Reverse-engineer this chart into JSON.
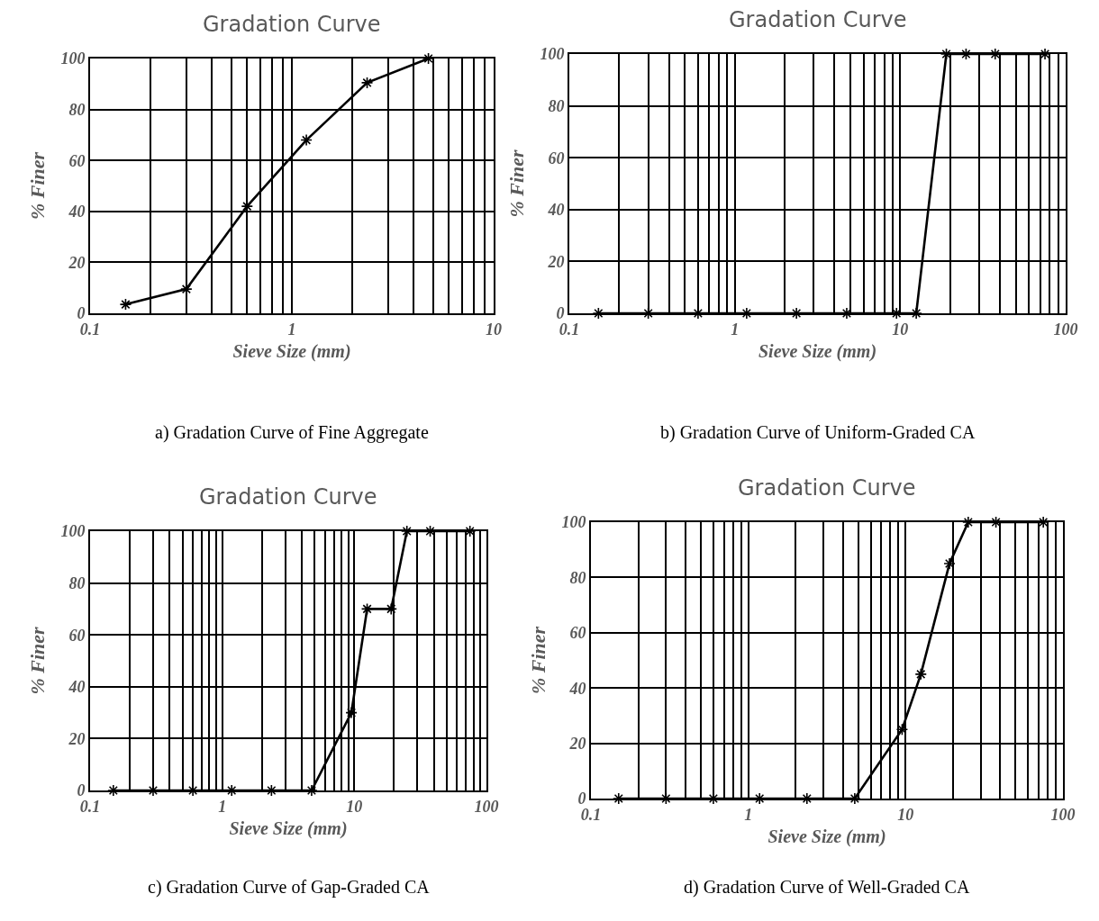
{
  "chart_data": [
    {
      "type": "line",
      "title": "Gradation Curve",
      "xlabel": "Sieve Size (mm)",
      "ylabel": "% Finer",
      "log": "x",
      "grid": true,
      "marker": "cross",
      "line_style": "solid",
      "x": [
        0.15,
        0.3,
        0.6,
        1.18,
        2.36,
        4.75
      ],
      "series": [
        {
          "color": "#000000",
          "values": [
            3.5,
            9.5,
            42,
            68,
            90.5,
            100
          ]
        }
      ],
      "xlim": [
        0.1,
        10
      ],
      "xticks": [
        0.1,
        {
          "value": 0.2,
          "label": null
        },
        {
          "value": 0.3,
          "label": null
        },
        {
          "value": 0.4,
          "label": null
        },
        {
          "value": 0.5,
          "label": null
        },
        {
          "value": 0.6,
          "label": null
        },
        {
          "value": 0.7,
          "label": null
        },
        {
          "value": 0.8,
          "label": null
        },
        {
          "value": 0.9,
          "label": null
        },
        1,
        {
          "value": 2,
          "label": null
        },
        {
          "value": 3,
          "label": null
        },
        {
          "value": 4,
          "label": null
        },
        {
          "value": 5,
          "label": null
        },
        {
          "value": 6,
          "label": null
        },
        {
          "value": 7,
          "label": null
        },
        {
          "value": 8,
          "label": null
        },
        {
          "value": 9,
          "label": null
        },
        10
      ],
      "ylim": [
        0,
        100
      ],
      "yticks": [
        0,
        20,
        40,
        60,
        80,
        100
      ],
      "annotations": [
        "a) Gradation Curve of Fine Aggregate"
      ]
    },
    {
      "type": "line",
      "title": "Gradation Curve",
      "xlabel": "Sieve Size (mm)",
      "ylabel": "% Finer",
      "log": "x",
      "grid": true,
      "marker": "cross",
      "line_style": "solid",
      "x": [
        0.15,
        0.3,
        0.6,
        1.18,
        2.36,
        4.75,
        9.5,
        12.5,
        19,
        25,
        37.5,
        75
      ],
      "series": [
        {
          "color": "#000000",
          "values": [
            0,
            0,
            0,
            0,
            0,
            0,
            0,
            0,
            100,
            100,
            100,
            100
          ]
        }
      ],
      "xlim": [
        0.1,
        100
      ],
      "xticks": [
        0.1,
        {
          "value": 0.2,
          "label": null
        },
        {
          "value": 0.3,
          "label": null
        },
        {
          "value": 0.4,
          "label": null
        },
        {
          "value": 0.5,
          "label": null
        },
        {
          "value": 0.6,
          "label": null
        },
        {
          "value": 0.7,
          "label": null
        },
        {
          "value": 0.8,
          "label": null
        },
        {
          "value": 0.9,
          "label": null
        },
        1,
        {
          "value": 2,
          "label": null
        },
        {
          "value": 3,
          "label": null
        },
        {
          "value": 4,
          "label": null
        },
        {
          "value": 5,
          "label": null
        },
        {
          "value": 6,
          "label": null
        },
        {
          "value": 7,
          "label": null
        },
        {
          "value": 8,
          "label": null
        },
        {
          "value": 9,
          "label": null
        },
        10,
        {
          "value": 20,
          "label": null
        },
        {
          "value": 30,
          "label": null
        },
        {
          "value": 40,
          "label": null
        },
        {
          "value": 50,
          "label": null
        },
        {
          "value": 60,
          "label": null
        },
        {
          "value": 70,
          "label": null
        },
        {
          "value": 80,
          "label": null
        },
        {
          "value": 90,
          "label": null
        },
        100
      ],
      "ylim": [
        0,
        100
      ],
      "yticks": [
        0,
        20,
        40,
        60,
        80,
        100
      ],
      "annotations": [
        "b) Gradation Curve of Uniform-Graded CA"
      ]
    },
    {
      "type": "line",
      "title": "Gradation Curve",
      "xlabel": "Sieve Size (mm)",
      "ylabel": "% Finer",
      "log": "x",
      "grid": true,
      "marker": "cross",
      "line_style": "solid",
      "x": [
        0.15,
        0.3,
        0.6,
        1.18,
        2.36,
        4.75,
        9.5,
        12.5,
        19,
        25,
        37.5,
        75
      ],
      "series": [
        {
          "color": "#000000",
          "values": [
            0,
            0,
            0,
            0,
            0,
            0,
            30,
            70,
            70,
            100,
            100,
            100
          ]
        }
      ],
      "xlim": [
        0.1,
        100
      ],
      "xticks": [
        0.1,
        {
          "value": 0.2,
          "label": null
        },
        {
          "value": 0.3,
          "label": null
        },
        {
          "value": 0.4,
          "label": null
        },
        {
          "value": 0.5,
          "label": null
        },
        {
          "value": 0.6,
          "label": null
        },
        {
          "value": 0.7,
          "label": null
        },
        {
          "value": 0.8,
          "label": null
        },
        {
          "value": 0.9,
          "label": null
        },
        1,
        {
          "value": 2,
          "label": null
        },
        {
          "value": 3,
          "label": null
        },
        {
          "value": 4,
          "label": null
        },
        {
          "value": 5,
          "label": null
        },
        {
          "value": 6,
          "label": null
        },
        {
          "value": 7,
          "label": null
        },
        {
          "value": 8,
          "label": null
        },
        {
          "value": 9,
          "label": null
        },
        10,
        {
          "value": 20,
          "label": null
        },
        {
          "value": 30,
          "label": null
        },
        {
          "value": 40,
          "label": null
        },
        {
          "value": 50,
          "label": null
        },
        {
          "value": 60,
          "label": null
        },
        {
          "value": 70,
          "label": null
        },
        {
          "value": 80,
          "label": null
        },
        {
          "value": 90,
          "label": null
        },
        100
      ],
      "ylim": [
        0,
        100
      ],
      "yticks": [
        0,
        20,
        40,
        60,
        80,
        100
      ],
      "annotations": [
        "c) Gradation Curve of Gap-Graded CA"
      ]
    },
    {
      "type": "line",
      "title": "Gradation Curve",
      "xlabel": "Sieve Size (mm)",
      "ylabel": "% Finer",
      "log": "x",
      "grid": true,
      "marker": "cross",
      "line_style": "solid",
      "x": [
        0.15,
        0.3,
        0.6,
        1.18,
        2.36,
        4.75,
        9.5,
        12.5,
        19,
        25,
        37.5,
        75
      ],
      "series": [
        {
          "color": "#000000",
          "values": [
            0,
            0,
            0,
            0,
            0,
            0,
            25,
            45,
            85,
            100,
            100,
            100
          ]
        }
      ],
      "xlim": [
        0.1,
        100
      ],
      "xticks": [
        0.1,
        {
          "value": 0.2,
          "label": null
        },
        {
          "value": 0.3,
          "label": null
        },
        {
          "value": 0.4,
          "label": null
        },
        {
          "value": 0.5,
          "label": null
        },
        {
          "value": 0.6,
          "label": null
        },
        {
          "value": 0.7,
          "label": null
        },
        {
          "value": 0.8,
          "label": null
        },
        {
          "value": 0.9,
          "label": null
        },
        1,
        {
          "value": 2,
          "label": null
        },
        {
          "value": 3,
          "label": null
        },
        {
          "value": 4,
          "label": null
        },
        {
          "value": 5,
          "label": null
        },
        {
          "value": 6,
          "label": null
        },
        {
          "value": 7,
          "label": null
        },
        {
          "value": 8,
          "label": null
        },
        {
          "value": 9,
          "label": null
        },
        10,
        {
          "value": 20,
          "label": null
        },
        {
          "value": 30,
          "label": null
        },
        {
          "value": 40,
          "label": null
        },
        {
          "value": 50,
          "label": null
        },
        {
          "value": 60,
          "label": null
        },
        {
          "value": 70,
          "label": null
        },
        {
          "value": 80,
          "label": null
        },
        {
          "value": 90,
          "label": null
        },
        100
      ],
      "ylim": [
        0,
        100
      ],
      "yticks": [
        0,
        20,
        40,
        60,
        80,
        100
      ],
      "annotations": [
        "d) Gradation Curve of Well-Graded CA"
      ]
    }
  ]
}
